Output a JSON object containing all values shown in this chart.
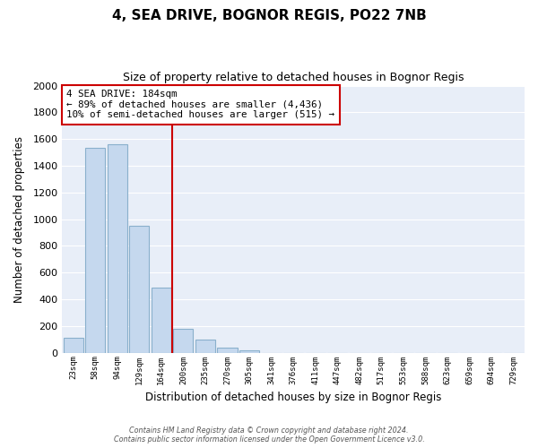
{
  "title": "4, SEA DRIVE, BOGNOR REGIS, PO22 7NB",
  "subtitle": "Size of property relative to detached houses in Bognor Regis",
  "xlabel": "Distribution of detached houses by size in Bognor Regis",
  "ylabel": "Number of detached properties",
  "bar_color": "#c5d8ee",
  "bar_edge_color": "#8ab0cc",
  "background_color": "#ffffff",
  "plot_bg_color": "#e8eef8",
  "grid_color": "#ffffff",
  "categories": [
    "23sqm",
    "58sqm",
    "94sqm",
    "129sqm",
    "164sqm",
    "200sqm",
    "235sqm",
    "270sqm",
    "305sqm",
    "341sqm",
    "376sqm",
    "411sqm",
    "447sqm",
    "482sqm",
    "517sqm",
    "553sqm",
    "588sqm",
    "623sqm",
    "659sqm",
    "694sqm",
    "729sqm"
  ],
  "values": [
    110,
    1535,
    1560,
    950,
    485,
    180,
    95,
    40,
    20,
    0,
    0,
    0,
    0,
    0,
    0,
    0,
    0,
    0,
    0,
    0,
    0
  ],
  "ylim": [
    0,
    2000
  ],
  "yticks": [
    0,
    200,
    400,
    600,
    800,
    1000,
    1200,
    1400,
    1600,
    1800,
    2000
  ],
  "vline_x": 4.5,
  "vline_color": "#cc0000",
  "annotation_title": "4 SEA DRIVE: 184sqm",
  "annotation_line1": "← 89% of detached houses are smaller (4,436)",
  "annotation_line2": "10% of semi-detached houses are larger (515) →",
  "annotation_box_color": "#ffffff",
  "annotation_box_edge_color": "#cc0000",
  "footer_line1": "Contains HM Land Registry data © Crown copyright and database right 2024.",
  "footer_line2": "Contains public sector information licensed under the Open Government Licence v3.0."
}
